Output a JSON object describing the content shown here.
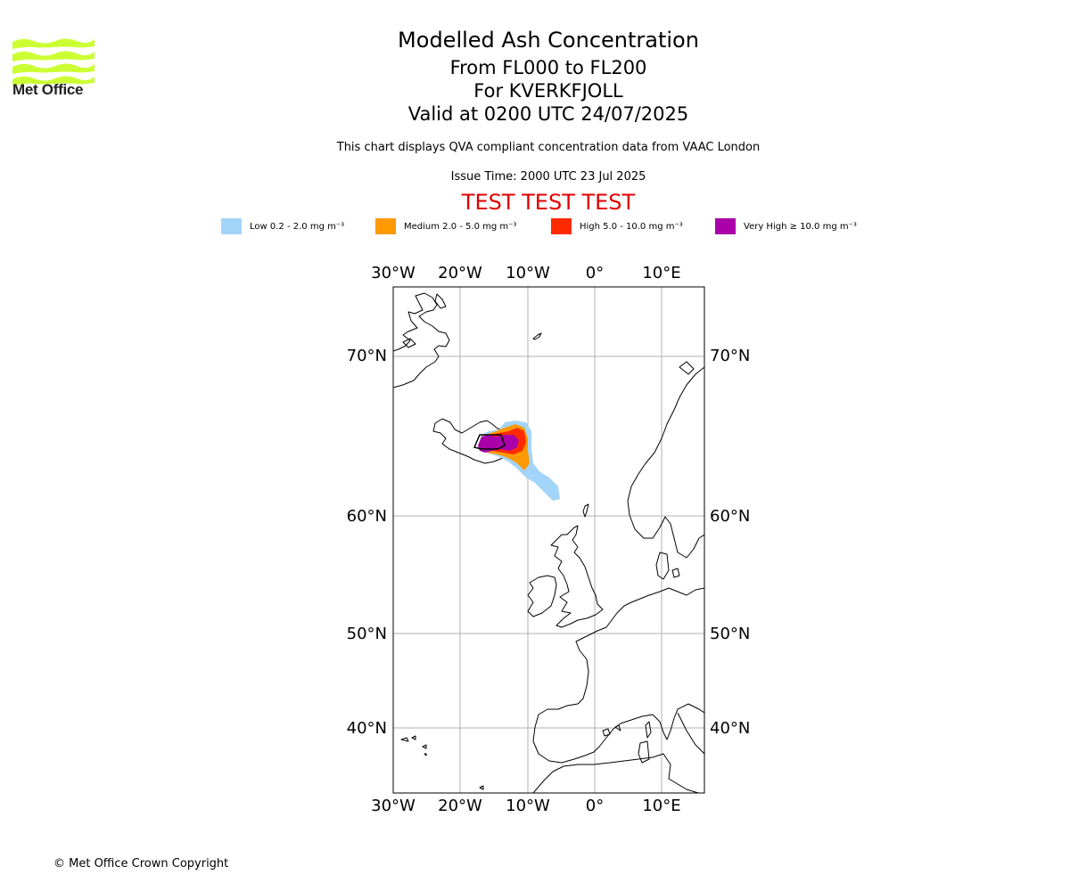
{
  "logo": {
    "text": "Met Office",
    "color": "#ccff33"
  },
  "titles": {
    "main": "Modelled Ash Concentration",
    "levels": "From FL000 to FL200",
    "volcano": "For KVERKFJOLL",
    "valid": "Valid at 0200 UTC 24/07/2025"
  },
  "subtitle": "This chart displays QVA compliant concentration data from VAAC London",
  "issue_time": "Issue Time: 2000 UTC 23 Jul 2025",
  "test_banner": "TEST TEST TEST",
  "legend": [
    {
      "label": "Low 0.2 - 2.0 mg m⁻³",
      "color": "#a3d4fa"
    },
    {
      "label": "Medium 2.0 - 5.0 mg m⁻³",
      "color": "#ff9900"
    },
    {
      "label": "High 5.0 - 10.0 mg m⁻³",
      "color": "#ff2a00"
    },
    {
      "label": "Very High  ≥  10.0 mg m⁻³",
      "color": "#aa00aa"
    }
  ],
  "map": {
    "lon_labels": [
      "30°W",
      "20°W",
      "10°W",
      "0°",
      "10°E"
    ],
    "lat_labels": [
      "70°N",
      "60°N",
      "50°N",
      "40°N"
    ],
    "volcano_name": "KVERKFJOLL"
  },
  "copyright": "© Met Office Crown Copyright"
}
